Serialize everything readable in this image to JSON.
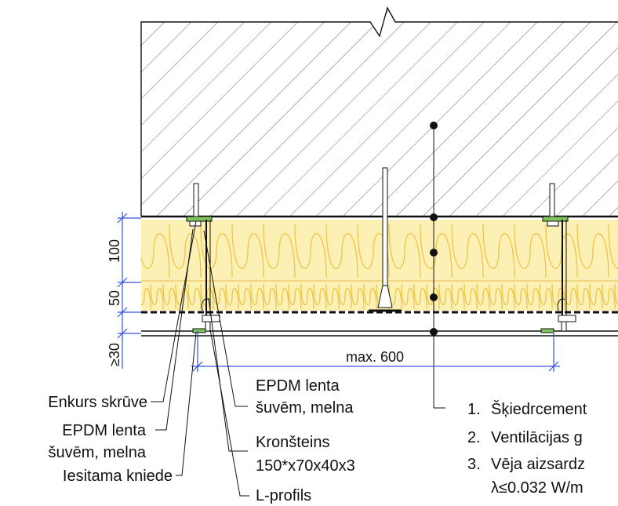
{
  "dimensions": {
    "insulation_main": "100",
    "insulation_wind": "50",
    "air_gap": "≥30",
    "bracket_spacing": "max. 600"
  },
  "labels": {
    "anchor_screw": "Enkurs skrūve",
    "epdm_left_1": "EPDM lenta",
    "epdm_left_2": "šuvēm, melna",
    "rivet": "Iesitama kniede",
    "epdm_right_1": "EPDM lenta",
    "epdm_right_2": "šuvēm, melna",
    "bracket_1": "Kronšteins",
    "bracket_2": "150*x70x40x3",
    "l_profile": "L-profils"
  },
  "legend": {
    "items": [
      {
        "num": "1.",
        "text": "Šķiedrcement"
      },
      {
        "num": "2.",
        "text": "Ventilācijas g"
      },
      {
        "num": "3.",
        "text": "Vēja aizsardz"
      }
    ],
    "item3_cont": "λ≤0.032 W/m"
  },
  "colors": {
    "dimension": "#3355dd",
    "insulation": "#fdf0b4",
    "insulation_line": "#ecc64a",
    "epdm": "#7fc35a",
    "line": "#111111"
  }
}
